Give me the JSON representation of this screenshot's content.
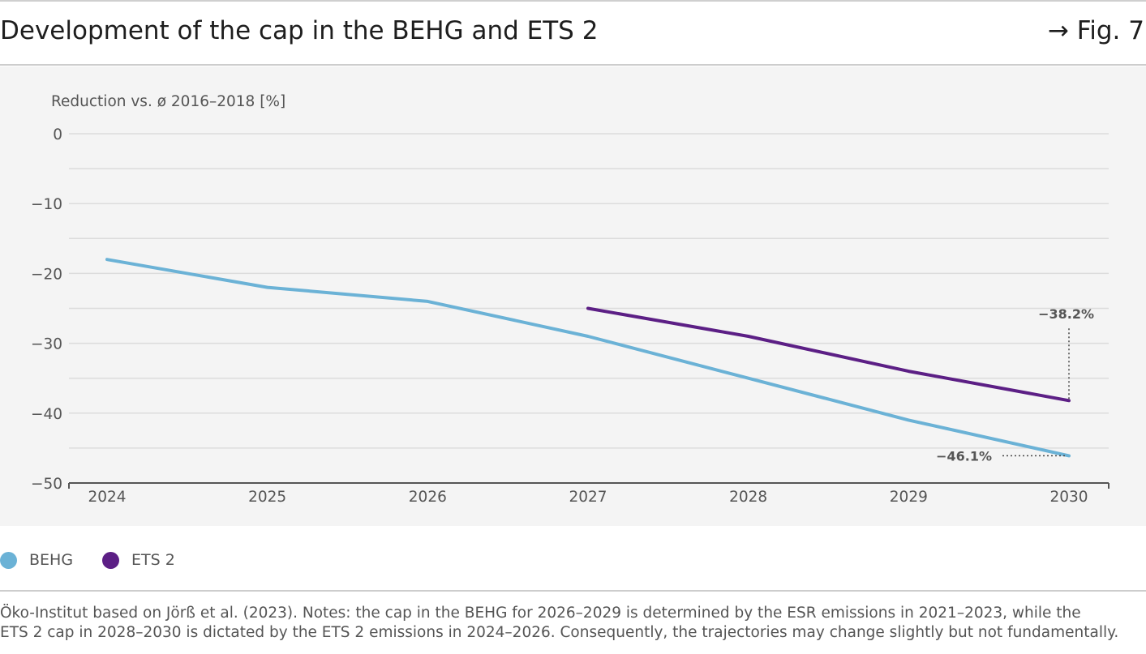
{
  "header": {
    "title": "Development of the cap in the BEHG and ETS 2",
    "figure_ref": "→ Fig. 7"
  },
  "colors": {
    "behg": "#6bb2d6",
    "ets2": "#5c1f85",
    "grid": "#dcdcdc",
    "axis": "#555555",
    "background": "#f4f4f4"
  },
  "chart_data": {
    "type": "line",
    "ylabel": "Reduction vs. ø 2016–2018 [%]",
    "xlabel": "",
    "x": [
      2024,
      2025,
      2026,
      2027,
      2028,
      2029,
      2030
    ],
    "x_ticks": [
      "2024",
      "2025",
      "2026",
      "2027",
      "2028",
      "2029",
      "2030"
    ],
    "ylim": [
      -50,
      0
    ],
    "y_ticks": [
      0,
      -10,
      -20,
      -30,
      -40,
      -50
    ],
    "y_tick_labels": [
      "0",
      "−10",
      "−20",
      "−30",
      "−40",
      "−50"
    ],
    "grid": true,
    "legend_position": "bottom-left",
    "series": [
      {
        "name": "BEHG",
        "color": "#6bb2d6",
        "x": [
          2024,
          2025,
          2026,
          2027,
          2028,
          2029,
          2030
        ],
        "values": [
          -18,
          -22,
          -24,
          -29,
          -35,
          -41,
          -46.1
        ]
      },
      {
        "name": "ETS 2",
        "color": "#5c1f85",
        "x": [
          2027,
          2028,
          2029,
          2030
        ],
        "values": [
          -25,
          -29,
          -34,
          -38.2
        ]
      }
    ],
    "annotations": [
      {
        "label": "−38.2%",
        "x": 2030,
        "y": -38.2,
        "series": "ETS 2"
      },
      {
        "label": "−46.1%",
        "x": 2030,
        "y": -46.1,
        "series": "BEHG"
      }
    ]
  },
  "source": {
    "line1": "Öko-Institut based on Jörß et al. (2023). Notes: the cap in the BEHG for 2026–2029 is determined by the ESR emissions in 2021–2023, while the",
    "line2": "ETS 2 cap in 2028–2030 is dictated by the ETS 2 emissions in 2024–2026. Consequently, the trajectories may change slightly but not fundamentally."
  }
}
